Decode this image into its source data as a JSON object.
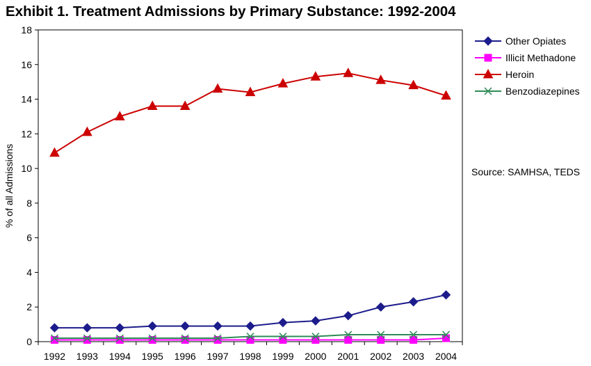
{
  "chart_data": {
    "type": "line",
    "title": "Exhibit 1. Treatment Admissions by Primary Substance: 1992-2004",
    "xlabel": "",
    "ylabel": "% of all Admissions",
    "categories": [
      "1992",
      "1993",
      "1994",
      "1995",
      "1996",
      "1997",
      "1998",
      "1999",
      "2000",
      "2001",
      "2002",
      "2003",
      "2004"
    ],
    "ylim": [
      0,
      18
    ],
    "yticks": [
      0,
      2,
      4,
      6,
      8,
      10,
      12,
      14,
      16,
      18
    ],
    "grid": false,
    "legend_position": "right",
    "series": [
      {
        "name": "Other Opiates",
        "color": "#1c1c8c",
        "marker": "diamond",
        "values": [
          0.8,
          0.8,
          0.8,
          0.9,
          0.9,
          0.9,
          0.9,
          1.1,
          1.2,
          1.5,
          2.0,
          2.3,
          2.7
        ]
      },
      {
        "name": "Illicit Methadone",
        "color": "#ff00ff",
        "marker": "square",
        "values": [
          0.1,
          0.1,
          0.1,
          0.1,
          0.1,
          0.1,
          0.1,
          0.1,
          0.1,
          0.1,
          0.1,
          0.1,
          0.2
        ]
      },
      {
        "name": "Heroin",
        "color": "#cc0000",
        "marker": "triangle",
        "values": [
          10.9,
          12.1,
          13.0,
          13.6,
          13.6,
          14.6,
          14.4,
          14.9,
          15.3,
          15.5,
          15.1,
          14.8,
          14.2
        ]
      },
      {
        "name": "Benzodiazepines",
        "color": "#2e8b57",
        "marker": "x",
        "values": [
          0.2,
          0.2,
          0.2,
          0.2,
          0.2,
          0.2,
          0.3,
          0.3,
          0.3,
          0.4,
          0.4,
          0.4,
          0.4
        ]
      }
    ],
    "annotation": "Source: SAMHSA, TEDS"
  }
}
